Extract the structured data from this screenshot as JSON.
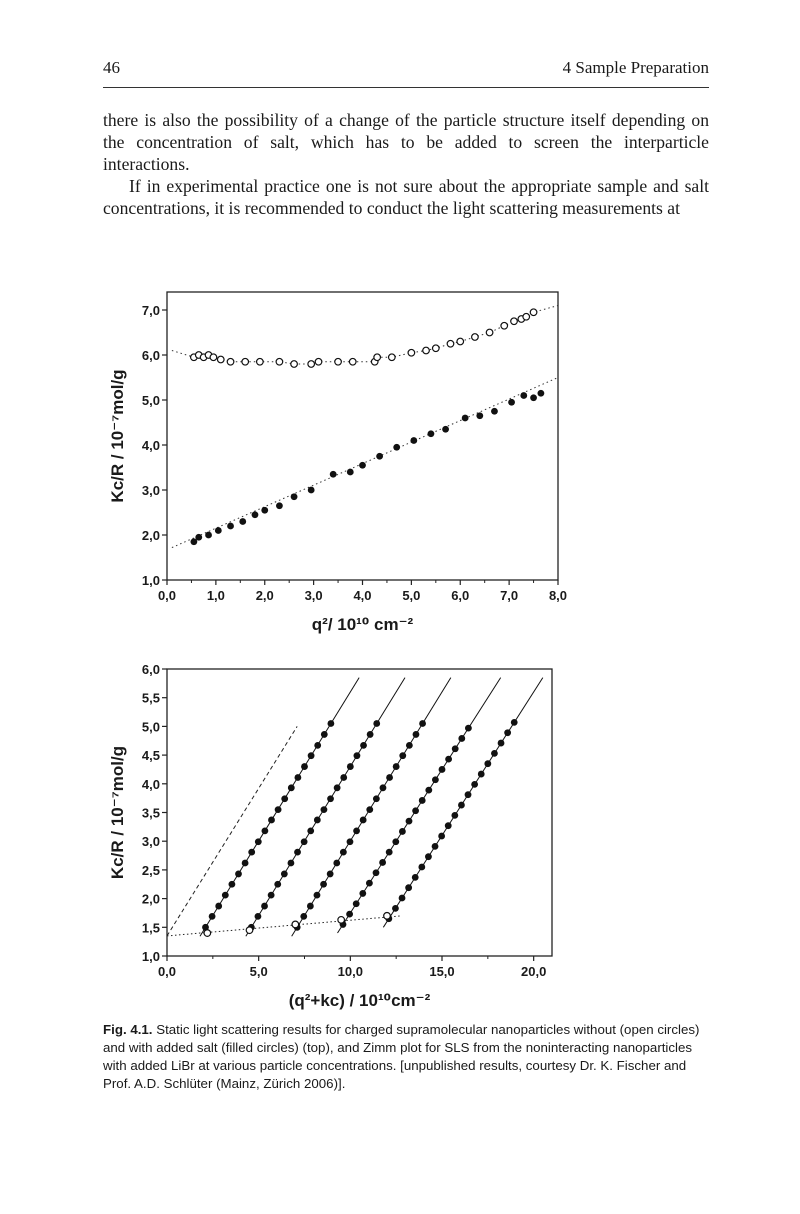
{
  "header": {
    "page_number": "46",
    "running_head": "4 Sample Preparation"
  },
  "body_text": {
    "paragraph_1": "there is also the possibility of a change of the particle structure itself depending on the concentration of salt, which has to be added to screen the interparticle interactions.",
    "paragraph_2": "If in experimental practice one is not sure about the appropriate sample and salt concentrations, it is recommended to conduct the light scattering measurements at"
  },
  "figure": {
    "caption": {
      "label": "Fig. 4.1.",
      "text": "Static light scattering results for charged supramolecular nanoparticles without (open circles) and with added salt (filled circles) (top), and Zimm plot for SLS from the noninteracting nanoparticles with added LiBr at various particle concentrations. [unpublished results, courtesy Dr. K. Fischer and Prof. A.D. Schlüter (Mainz, Zürich 2006)]."
    }
  },
  "chart_data": [
    {
      "type": "scatter",
      "xlabel": "q²/ 10¹⁰ cm⁻²",
      "ylabel": "Kc/R / 10⁻⁷mol/g",
      "xlim": [
        0,
        8
      ],
      "ylim": [
        1,
        7.4
      ],
      "xticks": [
        "0,0",
        "1,0",
        "2,0",
        "3,0",
        "4,0",
        "5,0",
        "6,0",
        "7,0",
        "8,0"
      ],
      "yticks": [
        "1,0",
        "2,0",
        "3,0",
        "4,0",
        "5,0",
        "6,0",
        "7,0"
      ],
      "grid": false,
      "series": [
        {
          "marker": "open-circle",
          "fit": "dotted-curve",
          "x": [
            0.55,
            0.65,
            0.75,
            0.85,
            0.95,
            1.1,
            1.3,
            1.6,
            1.9,
            2.3,
            2.6,
            2.95,
            3.1,
            3.5,
            3.8,
            4.25,
            4.3,
            4.6,
            5.0,
            5.3,
            5.5,
            5.8,
            6.0,
            6.3,
            6.6,
            6.9,
            7.1,
            7.25,
            7.35,
            7.5
          ],
          "y": [
            5.95,
            6.0,
            5.95,
            6.0,
            5.95,
            5.9,
            5.85,
            5.85,
            5.85,
            5.85,
            5.8,
            5.8,
            5.85,
            5.85,
            5.85,
            5.85,
            5.95,
            5.95,
            6.05,
            6.1,
            6.15,
            6.25,
            6.3,
            6.4,
            6.5,
            6.65,
            6.75,
            6.8,
            6.85,
            6.95
          ]
        },
        {
          "marker": "filled-circle",
          "fit": "dotted-line",
          "x": [
            0.55,
            0.65,
            0.85,
            1.05,
            1.3,
            1.55,
            1.8,
            2.0,
            2.3,
            2.6,
            2.95,
            3.4,
            3.75,
            4.0,
            4.35,
            4.7,
            5.05,
            5.4,
            5.7,
            6.1,
            6.4,
            6.7,
            7.05,
            7.3,
            7.5,
            7.65
          ],
          "y": [
            1.85,
            1.95,
            2.0,
            2.1,
            2.2,
            2.3,
            2.45,
            2.55,
            2.65,
            2.85,
            3.0,
            3.35,
            3.4,
            3.55,
            3.75,
            3.95,
            4.1,
            4.25,
            4.35,
            4.6,
            4.65,
            4.75,
            4.95,
            5.1,
            5.05,
            5.15
          ]
        }
      ]
    },
    {
      "type": "scatter",
      "xlabel": "(q²+kc) / 10¹⁰cm⁻²",
      "ylabel": "Kc/R / 10⁻⁷mol/g",
      "xlim": [
        0,
        21
      ],
      "ylim": [
        1,
        6
      ],
      "xticks": [
        "0,0",
        "5,0",
        "10,0",
        "15,0",
        "20,0"
      ],
      "yticks": [
        "1,0",
        "1,5",
        "2,0",
        "2,5",
        "3,0",
        "3,5",
        "4,0",
        "4,5",
        "5,0",
        "5,5",
        "6,0"
      ],
      "grid": false,
      "extrapolation_c0": {
        "line": "dashed",
        "x": [
          0.0,
          7.1
        ],
        "y": [
          1.35,
          5.0
        ]
      },
      "extrapolation_q0": {
        "line": "dotted",
        "x": [
          0.0,
          12.8
        ],
        "y": [
          1.35,
          1.7
        ],
        "open_points": {
          "x": [
            2.2,
            4.5,
            7.0,
            9.5,
            12.0
          ],
          "y": [
            1.4,
            1.45,
            1.55,
            1.63,
            1.7
          ]
        }
      },
      "series": [
        {
          "marker": "filled-circle",
          "x": [
            2.1,
            2.46,
            2.82,
            3.18,
            3.54,
            3.9,
            4.26,
            4.62,
            4.98,
            5.34,
            5.7,
            6.06,
            6.42,
            6.78,
            7.14,
            7.5,
            7.86,
            8.22,
            8.58,
            8.94
          ],
          "y": [
            1.5,
            1.69,
            1.87,
            2.06,
            2.25,
            2.43,
            2.62,
            2.81,
            2.99,
            3.18,
            3.37,
            3.55,
            3.74,
            3.93,
            4.11,
            4.3,
            4.49,
            4.67,
            4.86,
            5.05
          ]
        },
        {
          "marker": "filled-circle",
          "x": [
            4.6,
            4.96,
            5.32,
            5.68,
            6.04,
            6.4,
            6.76,
            7.12,
            7.48,
            7.84,
            8.2,
            8.56,
            8.92,
            9.28,
            9.64,
            10.0,
            10.36,
            10.72,
            11.08,
            11.44
          ],
          "y": [
            1.5,
            1.69,
            1.87,
            2.06,
            2.25,
            2.43,
            2.62,
            2.81,
            2.99,
            3.18,
            3.37,
            3.55,
            3.74,
            3.93,
            4.11,
            4.3,
            4.49,
            4.67,
            4.86,
            5.05
          ]
        },
        {
          "marker": "filled-circle",
          "x": [
            7.1,
            7.46,
            7.82,
            8.18,
            8.54,
            8.9,
            9.26,
            9.62,
            9.98,
            10.34,
            10.7,
            11.06,
            11.42,
            11.78,
            12.14,
            12.5,
            12.86,
            13.22,
            13.58,
            13.94
          ],
          "y": [
            1.5,
            1.69,
            1.87,
            2.06,
            2.25,
            2.43,
            2.62,
            2.81,
            2.99,
            3.18,
            3.37,
            3.55,
            3.74,
            3.93,
            4.11,
            4.3,
            4.49,
            4.67,
            4.86,
            5.05
          ]
        },
        {
          "marker": "filled-circle",
          "x": [
            9.6,
            9.96,
            10.32,
            10.68,
            11.04,
            11.4,
            11.76,
            12.12,
            12.48,
            12.84,
            13.2,
            13.56,
            13.92,
            14.28,
            14.64,
            15.0,
            15.36,
            15.72,
            16.08,
            16.44
          ],
          "y": [
            1.55,
            1.73,
            1.91,
            2.09,
            2.27,
            2.45,
            2.63,
            2.81,
            2.99,
            3.17,
            3.35,
            3.53,
            3.71,
            3.89,
            4.07,
            4.25,
            4.43,
            4.61,
            4.79,
            4.97
          ]
        },
        {
          "marker": "filled-circle",
          "x": [
            12.1,
            12.46,
            12.82,
            13.18,
            13.54,
            13.9,
            14.26,
            14.62,
            14.98,
            15.34,
            15.7,
            16.06,
            16.42,
            16.78,
            17.14,
            17.5,
            17.86,
            18.22,
            18.58,
            18.94
          ],
          "y": [
            1.65,
            1.83,
            2.01,
            2.19,
            2.37,
            2.55,
            2.73,
            2.91,
            3.09,
            3.27,
            3.45,
            3.63,
            3.81,
            3.99,
            4.17,
            4.35,
            4.53,
            4.71,
            4.89,
            5.07
          ]
        }
      ]
    }
  ]
}
